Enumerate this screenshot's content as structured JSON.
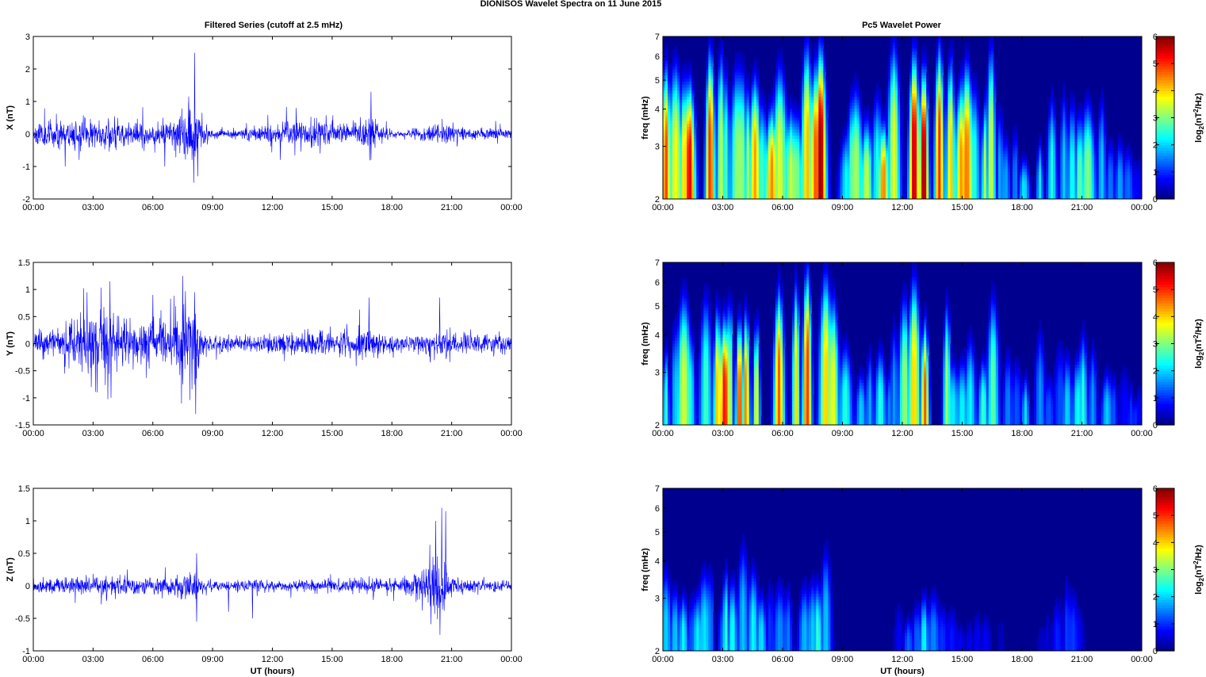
{
  "figure": {
    "suptitle": "DIONISOS Wavelet Spectra on 11 June      2015",
    "left_title": "Filtered Series (cutoff at 2.5 mHz)",
    "right_title": "Pc5 Wavelet Power"
  },
  "colors": {
    "series_line": "#0000ff",
    "frame": "#000000",
    "colormap": "jet",
    "spectrogram_background": "#00008f"
  },
  "chart_data": [
    {
      "type": "line",
      "panel": "X",
      "ylabel": "X (nT)",
      "xlabel": "",
      "x_ticks": [
        "00:00",
        "03:00",
        "06:00",
        "09:00",
        "12:00",
        "15:00",
        "18:00",
        "21:00",
        "00:00"
      ],
      "xlim_hours": [
        0,
        24
      ],
      "ylim": [
        -2,
        3
      ],
      "y_ticks": [
        "-2",
        "-1",
        "0",
        "1",
        "2",
        "3"
      ],
      "y_tick_values": [
        -2,
        -1,
        0,
        1,
        2,
        3
      ],
      "series": [
        {
          "seed": 11,
          "envelope_hours": [
            0,
            1,
            2,
            3,
            4,
            5,
            6,
            7,
            7.5,
            8,
            8.3,
            8.7,
            9,
            10,
            11,
            12,
            13,
            14,
            15,
            16,
            16.5,
            17,
            17.5,
            18,
            19,
            19.5,
            20,
            20.5,
            21,
            22,
            23,
            24
          ],
          "envelope_nT": [
            0.28,
            0.36,
            0.42,
            0.42,
            0.4,
            0.34,
            0.3,
            0.38,
            0.6,
            0.95,
            0.6,
            0.22,
            0.12,
            0.12,
            0.2,
            0.3,
            0.34,
            0.38,
            0.3,
            0.22,
            0.38,
            0.5,
            0.22,
            0.12,
            0.12,
            0.18,
            0.26,
            0.34,
            0.22,
            0.14,
            0.14,
            0.14
          ],
          "spikes": [
            [
              8.1,
              2.5
            ],
            [
              8.05,
              -1.5
            ],
            [
              7.8,
              1.15
            ],
            [
              8.25,
              -1.3
            ],
            [
              2.3,
              -0.8
            ],
            [
              1.6,
              -1.0
            ],
            [
              16.95,
              1.3
            ],
            [
              16.95,
              -0.8
            ],
            [
              12.4,
              -0.8
            ],
            [
              6.6,
              -1.0
            ],
            [
              13.2,
              0.8
            ],
            [
              14.4,
              -0.6
            ]
          ]
        }
      ]
    },
    {
      "type": "line",
      "panel": "Y",
      "ylabel": "Y (nT)",
      "xlabel": "",
      "x_ticks": [
        "00:00",
        "03:00",
        "06:00",
        "09:00",
        "12:00",
        "15:00",
        "18:00",
        "21:00",
        "00:00"
      ],
      "xlim_hours": [
        0,
        24
      ],
      "ylim": [
        -1.5,
        1.5
      ],
      "y_ticks": [
        "-1.5",
        "-1",
        "-0.5",
        "0",
        "0.5",
        "1",
        "1.5"
      ],
      "y_tick_values": [
        -1.5,
        -1,
        -0.5,
        0,
        0.5,
        1,
        1.5
      ],
      "series": [
        {
          "seed": 23,
          "envelope_hours": [
            0,
            1,
            2,
            2.5,
            3,
            3.5,
            4,
            5,
            6,
            7,
            7.5,
            8,
            8.5,
            9,
            10,
            11,
            12,
            13,
            14,
            15,
            16,
            16.5,
            17,
            18,
            19,
            20,
            20.5,
            21,
            22,
            23,
            24
          ],
          "envelope_nT": [
            0.2,
            0.22,
            0.36,
            0.52,
            0.55,
            0.58,
            0.44,
            0.34,
            0.38,
            0.45,
            0.7,
            0.7,
            0.24,
            0.12,
            0.12,
            0.12,
            0.16,
            0.18,
            0.2,
            0.16,
            0.22,
            0.34,
            0.22,
            0.12,
            0.13,
            0.2,
            0.3,
            0.18,
            0.14,
            0.16,
            0.14
          ],
          "spikes": [
            [
              7.5,
              1.25
            ],
            [
              7.5,
              -0.75
            ],
            [
              8.15,
              -1.3
            ],
            [
              8.1,
              0.95
            ],
            [
              3.9,
              -1.0
            ],
            [
              3.2,
              -0.9
            ],
            [
              3.85,
              1.15
            ],
            [
              6.0,
              0.9
            ],
            [
              2.7,
              0.95
            ],
            [
              16.85,
              0.85
            ],
            [
              20.4,
              0.85
            ]
          ]
        }
      ]
    },
    {
      "type": "line",
      "panel": "Z",
      "ylabel": "Z (nT)",
      "xlabel": "UT (hours)",
      "x_ticks": [
        "00:00",
        "03:00",
        "06:00",
        "09:00",
        "12:00",
        "15:00",
        "18:00",
        "21:00",
        "00:00"
      ],
      "xlim_hours": [
        0,
        24
      ],
      "ylim": [
        -1,
        1.5
      ],
      "y_ticks": [
        "-1",
        "-0.5",
        "0",
        "0.5",
        "1",
        "1.5"
      ],
      "y_tick_values": [
        -1,
        -0.5,
        0,
        0.5,
        1,
        1.5
      ],
      "series": [
        {
          "seed": 37,
          "envelope_hours": [
            0,
            2,
            4,
            6,
            7,
            8,
            8.5,
            9,
            11,
            13,
            15,
            17,
            18,
            19,
            19.5,
            20,
            20.5,
            21,
            22,
            24
          ],
          "envelope_nT": [
            0.08,
            0.12,
            0.14,
            0.12,
            0.12,
            0.22,
            0.08,
            0.07,
            0.08,
            0.07,
            0.08,
            0.09,
            0.08,
            0.12,
            0.3,
            0.55,
            0.6,
            0.12,
            0.08,
            0.07
          ],
          "spikes": [
            [
              8.2,
              -0.55
            ],
            [
              8.2,
              0.5
            ],
            [
              20.5,
              1.2
            ],
            [
              20.7,
              1.15
            ],
            [
              20.2,
              1.0
            ],
            [
              20.4,
              -0.3
            ],
            [
              11.0,
              -0.5
            ],
            [
              9.8,
              -0.4
            ]
          ]
        }
      ]
    },
    {
      "type": "heatmap",
      "panel": "X power",
      "ylabel": "freq (mHz)",
      "xlabel": "",
      "x_ticks": [
        "00:00",
        "03:00",
        "06:00",
        "09:00",
        "12:00",
        "15:00",
        "18:00",
        "21:00",
        "00:00"
      ],
      "xlim_hours": [
        0,
        24
      ],
      "y_scale": "log",
      "ylim_mHz": [
        2,
        7
      ],
      "y_ticks": [
        "2",
        "3",
        "4",
        "5",
        "6",
        "7"
      ],
      "y_tick_values": [
        2,
        3,
        4,
        5,
        6,
        7
      ],
      "colorbar": {
        "label": "log2(nT2/Hz)",
        "label_base": "log",
        "label_subscript": "2",
        "label_open": "(nT",
        "label_sup": "2",
        "label_close": "/Hz)",
        "range": [
          0,
          6
        ],
        "ticks": [
          "0",
          "1",
          "2",
          "3",
          "4",
          "5",
          "6"
        ],
        "tick_values": [
          0,
          1,
          2,
          3,
          4,
          5,
          6
        ]
      },
      "seed": 51,
      "activity_hours": [
        0,
        1,
        2,
        3,
        4,
        5,
        6,
        7,
        8,
        9,
        10,
        11,
        12,
        13,
        14,
        15,
        16,
        16.5,
        17,
        18,
        19,
        20,
        21,
        22,
        23,
        24
      ],
      "activity_level": [
        4.6,
        5.2,
        5.6,
        4.8,
        4.4,
        4.2,
        4.4,
        5.0,
        6.0,
        3.6,
        3.0,
        4.2,
        5.0,
        6.0,
        5.0,
        4.4,
        4.6,
        4.6,
        2.6,
        2.0,
        2.2,
        2.6,
        3.4,
        3.0,
        1.6,
        1.0
      ]
    },
    {
      "type": "heatmap",
      "panel": "Y power",
      "ylabel": "freq (mHz)",
      "xlabel": "",
      "x_ticks": [
        "00:00",
        "03:00",
        "06:00",
        "09:00",
        "12:00",
        "15:00",
        "18:00",
        "21:00",
        "00:00"
      ],
      "xlim_hours": [
        0,
        24
      ],
      "y_scale": "log",
      "ylim_mHz": [
        2,
        7
      ],
      "y_ticks": [
        "2",
        "3",
        "4",
        "5",
        "6",
        "7"
      ],
      "y_tick_values": [
        2,
        3,
        4,
        5,
        6,
        7
      ],
      "colorbar": {
        "label": "log2(nT2/Hz)",
        "label_base": "log",
        "label_subscript": "2",
        "label_open": "(nT",
        "label_sup": "2",
        "label_close": "/Hz)",
        "range": [
          0,
          6
        ],
        "ticks": [
          "0",
          "1",
          "2",
          "3",
          "4",
          "5",
          "6"
        ],
        "tick_values": [
          0,
          1,
          2,
          3,
          4,
          5,
          6
        ]
      },
      "seed": 67,
      "activity_hours": [
        0,
        1,
        2,
        3,
        3.5,
        4,
        5,
        6,
        7,
        8,
        9,
        10,
        11,
        12,
        13,
        14,
        15,
        16,
        16.5,
        17,
        18,
        19,
        20,
        21,
        22,
        23,
        24
      ],
      "activity_level": [
        3.4,
        3.8,
        4.6,
        5.6,
        6.0,
        4.8,
        5.0,
        4.6,
        4.6,
        5.6,
        2.4,
        2.2,
        2.6,
        3.0,
        4.6,
        3.4,
        2.6,
        3.4,
        4.2,
        2.4,
        2.0,
        2.2,
        1.8,
        2.6,
        2.2,
        1.4,
        0.8
      ]
    },
    {
      "type": "heatmap",
      "panel": "Z power",
      "ylabel": "freq (mHz)",
      "xlabel": "UT (hours)",
      "x_ticks": [
        "00:00",
        "03:00",
        "06:00",
        "09:00",
        "12:00",
        "15:00",
        "18:00",
        "21:00",
        "00:00"
      ],
      "xlim_hours": [
        0,
        24
      ],
      "y_scale": "log",
      "ylim_mHz": [
        2,
        7
      ],
      "y_ticks": [
        "2",
        "3",
        "4",
        "5",
        "6",
        "7"
      ],
      "y_tick_values": [
        2,
        3,
        4,
        5,
        6,
        7
      ],
      "colorbar": {
        "label": "log2(nT2/Hz)",
        "label_base": "log",
        "label_subscript": "2",
        "label_open": "(nT",
        "label_sup": "2",
        "label_close": "/Hz)",
        "range": [
          0,
          6
        ],
        "ticks": [
          "0",
          "1",
          "2",
          "3",
          "4",
          "5",
          "6"
        ],
        "tick_values": [
          0,
          1,
          2,
          3,
          4,
          5,
          6
        ]
      },
      "seed": 83,
      "activity_hours": [
        0,
        1,
        2,
        3,
        4,
        5,
        6,
        7,
        8,
        8.5,
        9,
        10,
        11,
        12,
        13,
        14,
        15,
        16,
        17,
        18,
        19,
        20,
        20.5,
        21,
        22,
        23,
        24
      ],
      "activity_level": [
        2.0,
        2.2,
        2.0,
        2.4,
        2.6,
        2.0,
        1.6,
        1.8,
        3.6,
        1.0,
        0.4,
        0.5,
        0.5,
        0.8,
        2.4,
        1.0,
        0.8,
        1.0,
        0.6,
        0.5,
        0.6,
        1.6,
        2.0,
        0.5,
        0.3,
        0.2,
        0.2
      ]
    }
  ]
}
